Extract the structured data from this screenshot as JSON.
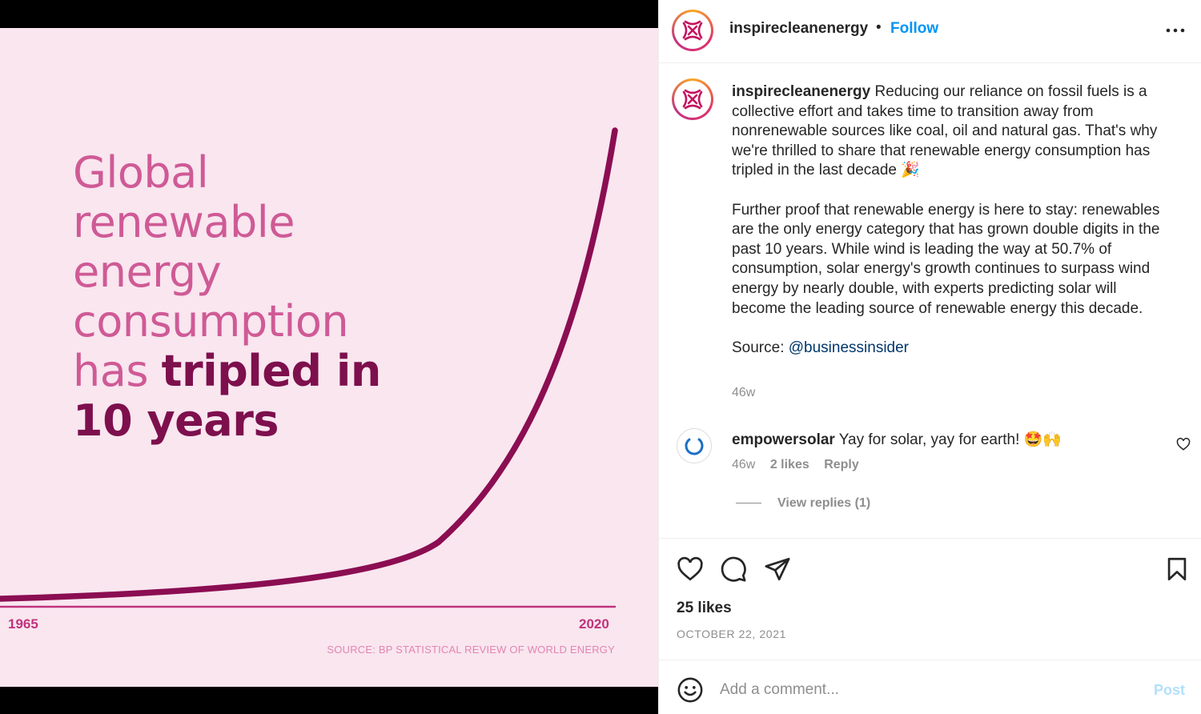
{
  "colors": {
    "accent": "#0095f6",
    "slide_bg": "#f9e6ef",
    "curve": "#8b0d52",
    "headline_light": "#cf5a96",
    "headline_bold": "#7d0f4d"
  },
  "slide": {
    "headline_lines": [
      "Global",
      "renewable",
      "energy",
      "consumption"
    ],
    "headline_has": "has ",
    "headline_bold_1": "tripled in",
    "headline_bold_2": "10 years",
    "x_start": "1965",
    "x_end": "2020",
    "source": "SOURCE: BP STATISTICAL REVIEW OF WORLD ENERGY"
  },
  "header": {
    "username": "inspirecleanenergy",
    "separator": "•",
    "follow_label": "Follow",
    "more_icon": "more-horizontal-icon"
  },
  "caption": {
    "username": "inspirecleanenergy",
    "paragraph_1": "Reducing our reliance on fossil fuels is a collective effort and takes time to transition away from nonrenewable sources like coal, oil and natural gas. That's why we're thrilled to share that renewable energy consumption has tripled in the last decade 🎉",
    "paragraph_2": "Further proof that renewable energy is here to stay: renewables are the only energy category that has grown double digits in the past 10 years. While wind is leading the way at 50.7% of consumption, solar energy's growth continues to surpass wind energy by nearly double, with experts predicting solar will become the leading source of renewable energy this decade.",
    "source_label": "Source: ",
    "source_mention": "@businessinsider",
    "time": "46w"
  },
  "comment": {
    "username": "empowersolar",
    "text": "Yay for solar, yay for earth! 🤩🙌",
    "time": "46w",
    "likes": "2 likes",
    "reply_label": "Reply",
    "view_replies": "View replies (1)"
  },
  "actions": {
    "likes": "25 likes",
    "date": "OCTOBER 22, 2021"
  },
  "add_comment": {
    "placeholder": "Add a comment...",
    "post_label": "Post"
  }
}
